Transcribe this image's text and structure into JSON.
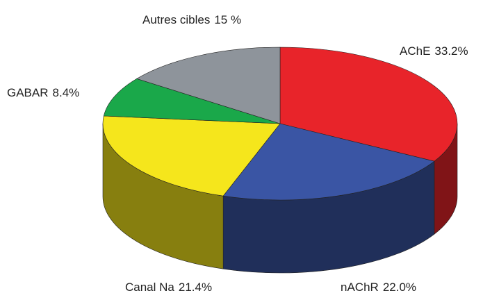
{
  "chart_data": {
    "type": "pie",
    "categories": [
      "AChE",
      "nAChR",
      "Canal Na",
      "GABAR",
      "Autres cibles"
    ],
    "values": [
      33.2,
      22.0,
      21.4,
      8.4,
      15
    ],
    "value_labels": [
      "33.2%",
      "22.0%",
      "21.4%",
      "8.4%",
      "15 %"
    ],
    "colors": [
      "#e8242a",
      "#3a55a4",
      "#f5e61c",
      "#1aa84a",
      "#8e949b"
    ],
    "three_d": true
  }
}
